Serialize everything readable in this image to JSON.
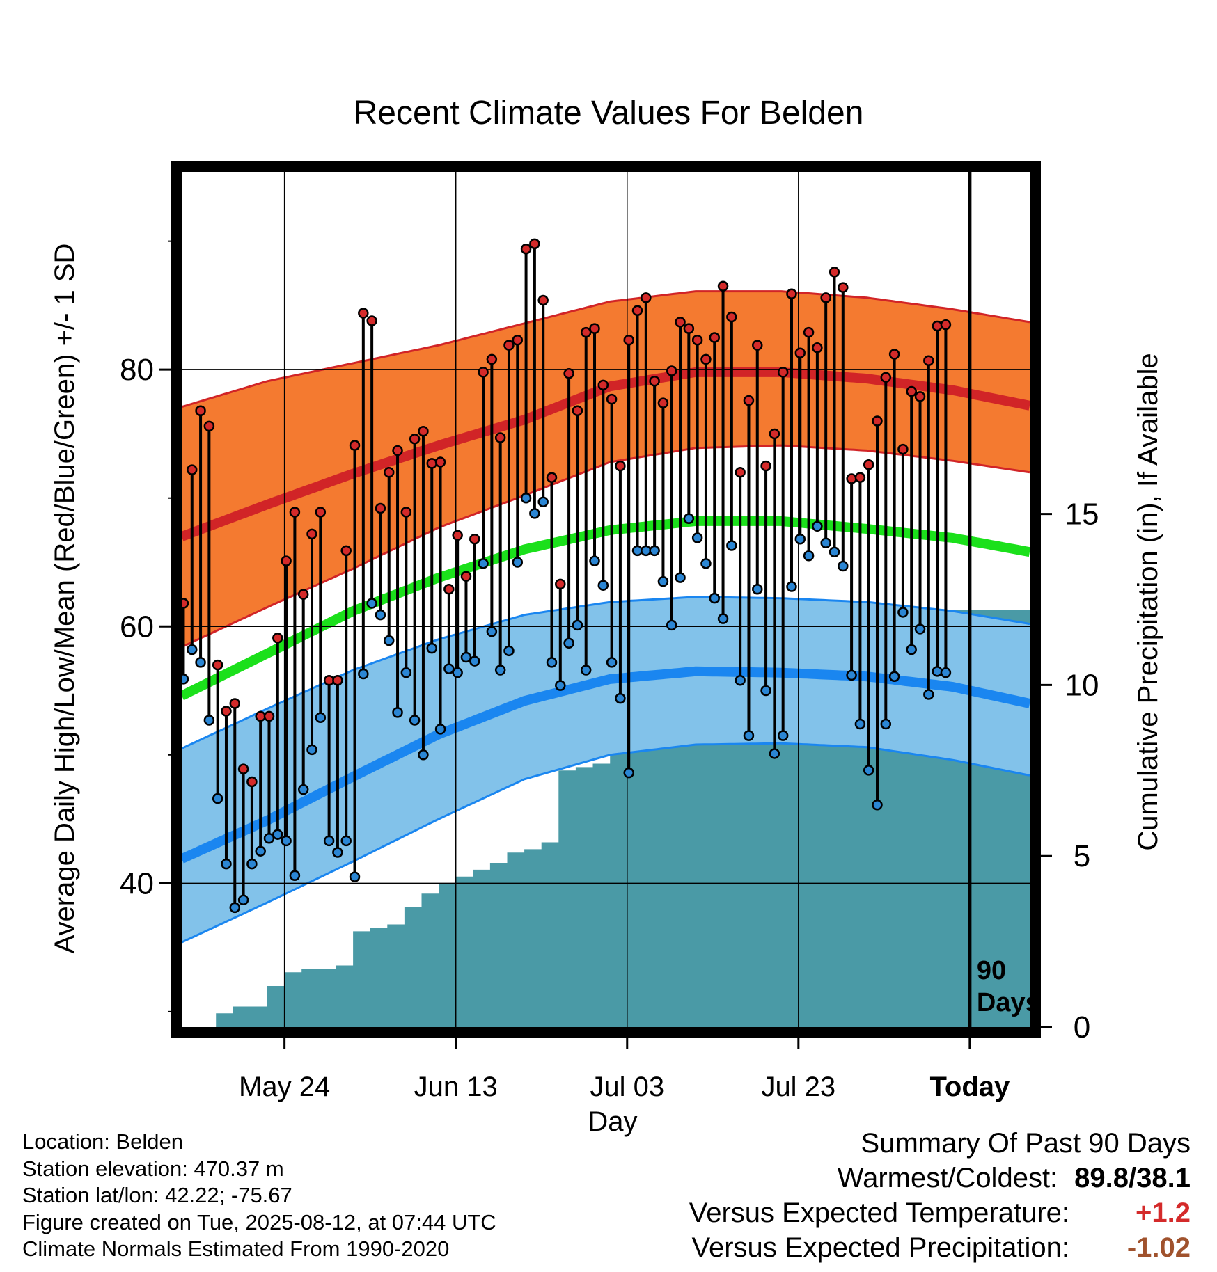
{
  "title": "Recent Climate Values For Belden",
  "chart_data": {
    "type": "line",
    "title": "Recent Climate Values For Belden",
    "xlabel": "Day",
    "ylabel": "Average Daily High/Low/Mean (Red/Blue/Green) +/- 1 SD",
    "y2label": "Cumulative Precipitation (in), If Available",
    "ylim": [
      28.8,
      95.4
    ],
    "y2lim": [
      0,
      25
    ],
    "y_ticks": [
      40,
      60,
      80
    ],
    "y2_ticks": [
      0,
      5,
      10,
      15
    ],
    "x_day_range": [
      -90,
      9
    ],
    "x_ticks": [
      {
        "day": -78,
        "label": "May 24"
      },
      {
        "day": -58,
        "label": "Jun 13"
      },
      {
        "day": -38,
        "label": "Jul 03"
      },
      {
        "day": -18,
        "label": "Jul 23"
      },
      {
        "day": 2,
        "label": "Today"
      }
    ],
    "grid": true,
    "today_marker_label": "90\nDays",
    "normals": {
      "x": [
        -90,
        -80,
        -70,
        -60,
        -50,
        -40,
        -30,
        -20,
        -10,
        0,
        9
      ],
      "high_mean": [
        67.0,
        69.5,
        71.9,
        74.1,
        76.1,
        78.7,
        79.8,
        79.8,
        79.3,
        78.4,
        77.2
      ],
      "high_upper": [
        77.1,
        79.1,
        80.5,
        81.9,
        83.6,
        85.3,
        86.1,
        86.1,
        85.6,
        84.7,
        83.7
      ],
      "high_lower": [
        58.4,
        61.5,
        64.5,
        67.7,
        70.2,
        72.8,
        73.9,
        74.1,
        73.7,
        72.9,
        72.0
      ],
      "mean": [
        54.6,
        57.9,
        61.2,
        63.8,
        66.0,
        67.5,
        68.2,
        68.2,
        67.6,
        66.9,
        65.8
      ],
      "low_mean": [
        41.9,
        44.9,
        48.3,
        51.6,
        54.2,
        55.9,
        56.5,
        56.4,
        56.1,
        55.3,
        54.0
      ],
      "low_upper": [
        50.5,
        53.6,
        56.6,
        59.0,
        60.9,
        61.9,
        62.3,
        62.2,
        61.9,
        61.2,
        60.2
      ],
      "low_lower": [
        35.4,
        38.5,
        41.7,
        45.0,
        48.1,
        50.0,
        50.8,
        50.9,
        50.6,
        49.6,
        48.4
      ]
    },
    "series": [
      {
        "name": "High",
        "color": "#d42a2a",
        "values": [
          61.8,
          72.2,
          76.8,
          75.6,
          57.0,
          53.4,
          54.0,
          48.9,
          47.9,
          53.0,
          53.0,
          59.1,
          65.1,
          68.9,
          62.5,
          67.2,
          68.9,
          55.8,
          55.8,
          65.9,
          74.1,
          84.4,
          83.8,
          69.2,
          72.0,
          73.7,
          68.9,
          74.6,
          75.2,
          72.7,
          72.8,
          62.9,
          67.1,
          63.9,
          66.8,
          79.8,
          80.8,
          74.7,
          81.9,
          82.3,
          89.4,
          89.8,
          85.4,
          71.6,
          63.3,
          79.7,
          76.8,
          82.9,
          83.2,
          78.8,
          77.7,
          72.5,
          82.3,
          84.6,
          85.6,
          79.1,
          77.4,
          79.9,
          83.7,
          83.2,
          82.3,
          80.8,
          82.5,
          86.5,
          84.1,
          72.0,
          77.6,
          81.9,
          72.5,
          75.0,
          79.8,
          85.9,
          81.3,
          82.9,
          81.7,
          85.6,
          87.6,
          86.4,
          71.5,
          71.6,
          72.6,
          76.0,
          79.4,
          81.2,
          73.8,
          78.3,
          77.9,
          80.7,
          83.4,
          83.5
        ]
      },
      {
        "name": "Low",
        "color": "#2b86d4",
        "values": [
          55.9,
          58.2,
          57.2,
          52.7,
          46.6,
          41.5,
          38.1,
          38.7,
          41.5,
          42.5,
          43.5,
          43.8,
          43.3,
          40.6,
          47.3,
          50.4,
          52.9,
          43.3,
          42.4,
          43.3,
          40.5,
          56.3,
          61.8,
          60.9,
          58.9,
          53.3,
          56.4,
          52.7,
          50.0,
          58.3,
          52.0,
          56.7,
          56.4,
          57.6,
          57.3,
          64.9,
          59.6,
          56.6,
          58.1,
          65.0,
          70.0,
          68.8,
          69.7,
          57.2,
          55.4,
          58.7,
          60.1,
          56.6,
          65.1,
          63.2,
          57.2,
          54.4,
          48.6,
          65.9,
          65.9,
          65.9,
          63.5,
          60.1,
          63.8,
          68.4,
          66.9,
          64.9,
          62.2,
          60.6,
          66.3,
          55.8,
          51.5,
          62.9,
          55.0,
          50.1,
          51.5,
          63.1,
          66.8,
          65.5,
          67.8,
          66.5,
          65.8,
          64.7,
          56.2,
          52.4,
          48.8,
          46.1,
          52.4,
          56.1,
          61.1,
          58.2,
          59.8,
          54.7,
          56.5,
          56.4
        ]
      },
      {
        "name": "Cumulative Precipitation",
        "color": "#4a9aa6",
        "x": [
          -90,
          -88,
          -86,
          -84,
          -82,
          -80,
          -78,
          -76,
          -74,
          -72,
          -70,
          -68,
          -66,
          -64,
          -62,
          -60,
          -58,
          -56,
          -54,
          -52,
          -50,
          -48,
          -46,
          -44,
          -42,
          -40,
          -38,
          -36,
          -34,
          -32,
          -30,
          -28,
          -26,
          -24,
          -22,
          -20,
          -18,
          -16,
          -14,
          -12,
          -10,
          -8,
          -6,
          -4,
          -2,
          0,
          2,
          9
        ],
        "values": [
          0.0,
          0.0,
          0.4,
          0.6,
          0.6,
          1.2,
          1.6,
          1.7,
          1.7,
          1.8,
          2.8,
          2.9,
          3.0,
          3.5,
          3.9,
          4.2,
          4.4,
          4.6,
          4.8,
          5.1,
          5.2,
          5.4,
          7.5,
          7.6,
          7.7,
          8.0,
          8.1,
          8.2,
          8.6,
          9.2,
          10.6,
          10.7,
          10.8,
          10.8,
          10.9,
          11.0,
          11.1,
          11.4,
          11.6,
          11.8,
          12.0,
          12.2,
          12.2,
          12.2,
          12.2,
          12.2,
          12.2,
          12.2
        ]
      }
    ]
  },
  "location_info": {
    "location": "Location: Belden",
    "elevation": "Station elevation: 470.37 m",
    "latlon": "Station lat/lon: 42.22; -75.67",
    "created": "Figure created on Tue, 2025-08-12, at 07:44 UTC",
    "normals_period": "Climate Normals Estimated From 1990-2020"
  },
  "summary": {
    "heading": "Summary Of Past 90 Days",
    "warm_cold_label": "Warmest/Coldest:",
    "warm_cold_value": "89.8/38.1",
    "temp_label": "Versus Expected Temperature:",
    "temp_value": "+1.2",
    "temp_color": "#d42a2a",
    "precip_label": "Versus Expected Precipitation:",
    "precip_value": "-1.02",
    "precip_color": "#a0522d"
  },
  "colors": {
    "high_band": "#f47a30",
    "high_line": "#d12427",
    "mean_line": "#1be01b",
    "low_band": "#82c2ea",
    "low_line": "#1a86f0",
    "precip_fill": "#4a9aa6"
  }
}
